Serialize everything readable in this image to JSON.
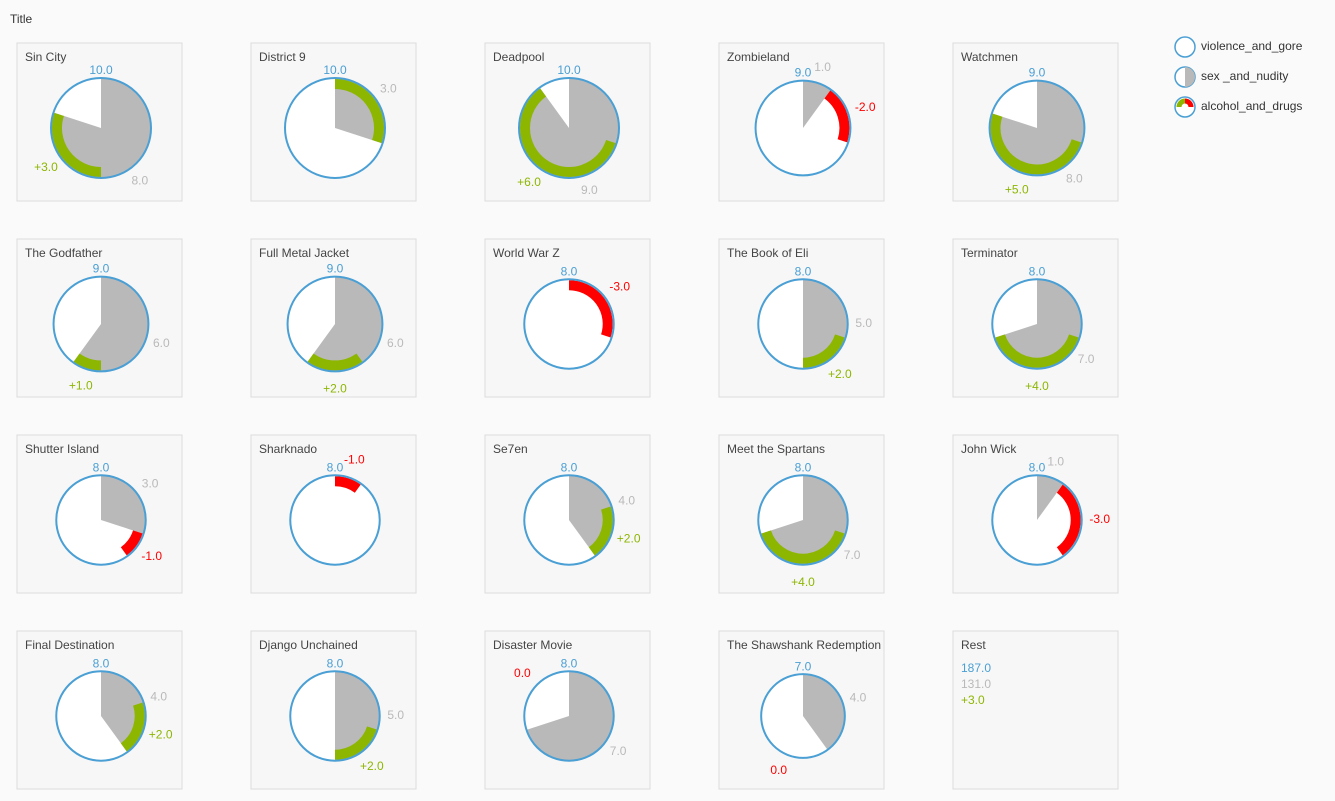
{
  "chart_data": {
    "type": "radial-glyph",
    "title": "Title",
    "legend": "top-right",
    "categories": [
      "Sin City",
      "District 9",
      "Deadpool",
      "Zombieland",
      "Watchmen",
      "The Godfather",
      "Full Metal Jacket",
      "World War Z",
      "The Book of Eli",
      "Terminator",
      "Shutter Island",
      "Sharknado",
      "Se7en",
      "Meet the Spartans",
      "John Wick",
      "Final Destination",
      "Django Unchained",
      "Disaster Movie",
      "The Shawshank Redemption"
    ],
    "series": [
      {
        "name": "violence_and_gore",
        "color": "#4a9fd4",
        "values": [
          10,
          10,
          10,
          9,
          9,
          9,
          9,
          8,
          8,
          8,
          8,
          8,
          8,
          8,
          8,
          8,
          8,
          8,
          7
        ],
        "value_labels": [
          "10.0",
          "10.0",
          "10.0",
          "9.0",
          "9.0",
          "9.0",
          "9.0",
          "8.0",
          "8.0",
          "8.0",
          "8.0",
          "8.0",
          "8.0",
          "8.0",
          "8.0",
          "8.0",
          "8.0",
          "8.0",
          "7.0"
        ]
      },
      {
        "name": "sex _and_nudity",
        "color": "#b9b9b9",
        "values": [
          8,
          3,
          9,
          1,
          8,
          6,
          6,
          0,
          5,
          7,
          3,
          0,
          4,
          7,
          1,
          4,
          5,
          7,
          4
        ],
        "value_labels": [
          "8.0",
          "3.0",
          "9.0",
          "1.0",
          "8.0",
          "6.0",
          "6.0",
          null,
          "5.0",
          "7.0",
          "3.0",
          null,
          "4.0",
          "7.0",
          "1.0",
          "4.0",
          "5.0",
          "7.0",
          "4.0"
        ]
      },
      {
        "name": "alcohol_and_drugs",
        "color": "#8db600",
        "negative_color": "#ff0000",
        "values": [
          3,
          3,
          6,
          -2,
          5,
          1,
          2,
          -3,
          2,
          4,
          -1,
          -1,
          2,
          4,
          -3,
          2,
          2,
          0,
          0
        ],
        "value_labels": [
          "+3.0",
          null,
          "+6.0",
          "-2.0",
          "+5.0",
          "+1.0",
          "+2.0",
          "-3.0",
          "+2.0",
          "+4.0",
          "-1.0",
          "-1.0",
          "+2.0",
          "+4.0",
          "-3.0",
          "+2.0",
          "+2.0",
          "0.0",
          "0.0"
        ]
      }
    ],
    "rest": {
      "name": "Rest",
      "values": [
        187,
        131,
        3
      ],
      "value_labels": [
        "187.0",
        "131.0",
        "+3.0"
      ]
    }
  }
}
